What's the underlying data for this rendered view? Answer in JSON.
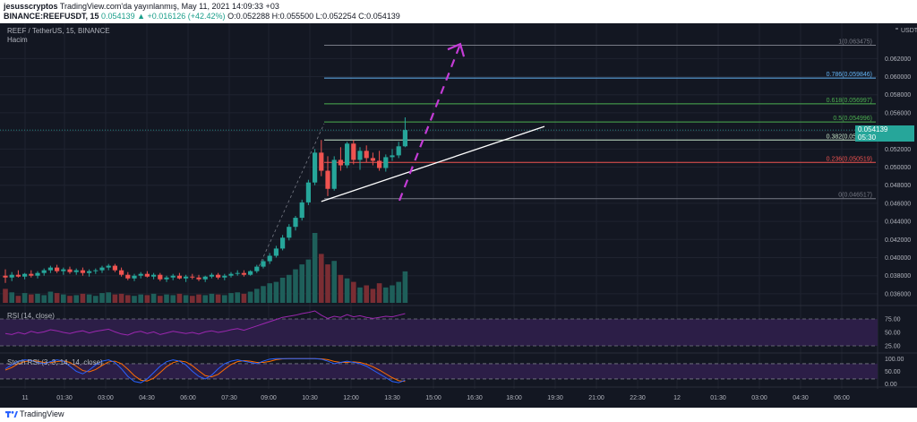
{
  "header": {
    "author": "jesusscryptos",
    "published": "TradingView.com'da yayınlanmış, May 11, 2021 14:09:33 +03",
    "symbol": "BINANCE:REEFUSDT, 15",
    "ohlc": "O:0.052288 H:0.055500 L:0.052254 C:0.054139",
    "change": "0.054139 ▲ +0.016126 (+42.42%)"
  },
  "legend": {
    "title": "REEF / TetherUS, 15, BINANCE",
    "volume_label": "Hacim",
    "rsi_label": "RSI (14, close)",
    "stoch_label": "Stoch RSI (3, 3, 14, 14, close)"
  },
  "price_tag": {
    "value": "0.054139",
    "countdown": "05:30"
  },
  "footer": {
    "brand": "TradingView"
  },
  "colors": {
    "background": "#131722",
    "up": "#26a69a",
    "down": "#ef5350",
    "rsi_line": "#9c27b0",
    "rsi_fill": "#2c1e47",
    "stoch_k": "#2962ff",
    "stoch_d": "#ff6d00",
    "projection": "#c43cd6",
    "trendline": "#ffffff"
  },
  "chart_data": {
    "type": "candlestick",
    "x_tick_labels": [
      "11",
      "01:30",
      "03:00",
      "04:30",
      "06:00",
      "07:30",
      "09:00",
      "10:30",
      "12:00",
      "13:30",
      "15:00",
      "16:30",
      "18:00",
      "19:30",
      "21:00",
      "22:30",
      "12",
      "01:30",
      "03:00",
      "04:30",
      "06:00"
    ],
    "y_axis_unit": "USDT",
    "y_tick_labels": [
      "0.062000",
      "0.060000",
      "0.058000",
      "0.056000",
      "0.054000",
      "0.052000",
      "0.050000",
      "0.048000",
      "0.046000",
      "0.044000",
      "0.042000",
      "0.040000",
      "0.038000",
      "0.036000"
    ],
    "ylim": [
      0.035,
      0.0655
    ],
    "candles_ohlc": [
      [
        0.038,
        0.0387,
        0.0372,
        0.0378
      ],
      [
        0.0378,
        0.0384,
        0.0374,
        0.0381
      ],
      [
        0.0381,
        0.0386,
        0.0378,
        0.0379
      ],
      [
        0.0379,
        0.0383,
        0.0376,
        0.0382
      ],
      [
        0.0382,
        0.0386,
        0.0378,
        0.038
      ],
      [
        0.038,
        0.0385,
        0.0377,
        0.0383
      ],
      [
        0.0383,
        0.0388,
        0.038,
        0.0386
      ],
      [
        0.0386,
        0.0391,
        0.0383,
        0.0389
      ],
      [
        0.0389,
        0.0392,
        0.0383,
        0.0385
      ],
      [
        0.0385,
        0.0389,
        0.0381,
        0.0387
      ],
      [
        0.0387,
        0.039,
        0.0382,
        0.0384
      ],
      [
        0.0384,
        0.0388,
        0.0381,
        0.0386
      ],
      [
        0.0386,
        0.0389,
        0.038,
        0.0383
      ],
      [
        0.0383,
        0.0387,
        0.0379,
        0.0385
      ],
      [
        0.0385,
        0.0388,
        0.0382,
        0.0386
      ],
      [
        0.0386,
        0.0391,
        0.0383,
        0.0389
      ],
      [
        0.0389,
        0.0393,
        0.0386,
        0.0391
      ],
      [
        0.0391,
        0.0393,
        0.0384,
        0.0386
      ],
      [
        0.0386,
        0.0389,
        0.0379,
        0.0381
      ],
      [
        0.0381,
        0.0384,
        0.0375,
        0.0377
      ],
      [
        0.0377,
        0.0382,
        0.0374,
        0.038
      ],
      [
        0.038,
        0.0384,
        0.0377,
        0.0382
      ],
      [
        0.0382,
        0.0385,
        0.0378,
        0.0379
      ],
      [
        0.0379,
        0.0383,
        0.0376,
        0.0381
      ],
      [
        0.0381,
        0.0383,
        0.0374,
        0.0376
      ],
      [
        0.0376,
        0.038,
        0.0373,
        0.0378
      ],
      [
        0.0378,
        0.0382,
        0.0375,
        0.038
      ],
      [
        0.038,
        0.0383,
        0.0376,
        0.0377
      ],
      [
        0.0377,
        0.0381,
        0.0373,
        0.0379
      ],
      [
        0.0379,
        0.0382,
        0.0376,
        0.0378
      ],
      [
        0.0378,
        0.0381,
        0.0374,
        0.0376
      ],
      [
        0.0376,
        0.038,
        0.0373,
        0.0379
      ],
      [
        0.0379,
        0.0383,
        0.0377,
        0.0381
      ],
      [
        0.0381,
        0.0383,
        0.0376,
        0.0378
      ],
      [
        0.0378,
        0.0382,
        0.0375,
        0.038
      ],
      [
        0.038,
        0.0384,
        0.0378,
        0.0382
      ],
      [
        0.0382,
        0.0386,
        0.038,
        0.0383
      ],
      [
        0.0383,
        0.0386,
        0.0379,
        0.0381
      ],
      [
        0.0381,
        0.0386,
        0.038,
        0.0385
      ],
      [
        0.0385,
        0.0392,
        0.0383,
        0.039
      ],
      [
        0.039,
        0.0398,
        0.0388,
        0.0396
      ],
      [
        0.0396,
        0.0405,
        0.0393,
        0.0402
      ],
      [
        0.0402,
        0.0413,
        0.04,
        0.041
      ],
      [
        0.041,
        0.0425,
        0.0408,
        0.0422
      ],
      [
        0.0422,
        0.0437,
        0.0419,
        0.0434
      ],
      [
        0.0434,
        0.0446,
        0.043,
        0.0444
      ],
      [
        0.0444,
        0.0464,
        0.0441,
        0.0461
      ],
      [
        0.0461,
        0.0486,
        0.0458,
        0.0483
      ],
      [
        0.0483,
        0.052,
        0.048,
        0.0516
      ],
      [
        0.0516,
        0.053,
        0.049,
        0.0496
      ],
      [
        0.0496,
        0.0512,
        0.0468,
        0.0476
      ],
      [
        0.0476,
        0.0512,
        0.0474,
        0.0508
      ],
      [
        0.0508,
        0.0522,
        0.0496,
        0.0502
      ],
      [
        0.0502,
        0.0528,
        0.0499,
        0.0526
      ],
      [
        0.0526,
        0.053,
        0.0503,
        0.0508
      ],
      [
        0.0508,
        0.0522,
        0.0497,
        0.0518
      ],
      [
        0.0518,
        0.0524,
        0.0505,
        0.051
      ],
      [
        0.051,
        0.0516,
        0.0502,
        0.0507
      ],
      [
        0.0507,
        0.0518,
        0.0496,
        0.0499
      ],
      [
        0.0499,
        0.0514,
        0.0495,
        0.0511
      ],
      [
        0.0511,
        0.052,
        0.0507,
        0.0513
      ],
      [
        0.0513,
        0.0528,
        0.051,
        0.0523
      ],
      [
        0.0523,
        0.0555,
        0.0522,
        0.0541
      ]
    ],
    "volume_relative": [
      0.2,
      0.15,
      0.1,
      0.14,
      0.12,
      0.13,
      0.11,
      0.16,
      0.14,
      0.12,
      0.1,
      0.11,
      0.13,
      0.12,
      0.1,
      0.14,
      0.15,
      0.12,
      0.13,
      0.11,
      0.1,
      0.12,
      0.11,
      0.13,
      0.1,
      0.12,
      0.11,
      0.13,
      0.11,
      0.1,
      0.12,
      0.11,
      0.13,
      0.12,
      0.11,
      0.14,
      0.15,
      0.13,
      0.16,
      0.2,
      0.24,
      0.28,
      0.3,
      0.36,
      0.4,
      0.48,
      0.55,
      0.62,
      1.0,
      0.7,
      0.55,
      0.6,
      0.4,
      0.35,
      0.3,
      0.22,
      0.25,
      0.2,
      0.28,
      0.22,
      0.25,
      0.3,
      0.45
    ],
    "fibonacci": [
      {
        "label": "1(0.063475)",
        "value": 0.063475,
        "color": "#787b86"
      },
      {
        "label": "0.786(0.059846)",
        "value": 0.059846,
        "color": "#64b5f6"
      },
      {
        "label": "0.618(0.056997)",
        "value": 0.056997,
        "color": "#4caf50"
      },
      {
        "label": "0.5(0.054996)",
        "value": 0.054996,
        "color": "#4caf50"
      },
      {
        "label": "0.382(0.052995)",
        "value": 0.052995,
        "color": "#c8e6c9"
      },
      {
        "label": "0.236(0.050519)",
        "value": 0.050519,
        "color": "#ef5350"
      },
      {
        "label": "0(0.046517)",
        "value": 0.046517,
        "color": "#787b86"
      }
    ],
    "rsi": {
      "levels_labels": [
        "75.00",
        "50.00",
        "25.00"
      ],
      "levels": [
        75,
        50,
        25
      ],
      "ylim": [
        15,
        95
      ],
      "values": [
        48,
        46,
        50,
        47,
        52,
        49,
        51,
        55,
        53,
        50,
        48,
        51,
        53,
        49,
        52,
        54,
        56,
        51,
        47,
        45,
        50,
        52,
        48,
        51,
        46,
        49,
        52,
        50,
        48,
        50,
        47,
        51,
        53,
        50,
        52,
        55,
        57,
        54,
        58,
        62,
        66,
        70,
        74,
        78,
        80,
        82,
        85,
        87,
        90,
        82,
        76,
        80,
        78,
        83,
        79,
        81,
        78,
        76,
        78,
        80,
        79,
        82,
        85
      ]
    },
    "stoch_rsi": {
      "levels_labels": [
        "100.00",
        "50.00",
        "0.00"
      ],
      "levels": [
        100,
        50,
        0
      ],
      "ylim": [
        -5,
        115
      ],
      "k": [
        60,
        75,
        90,
        95,
        92,
        85,
        80,
        88,
        95,
        90,
        70,
        50,
        40,
        55,
        75,
        90,
        95,
        85,
        60,
        30,
        10,
        5,
        20,
        45,
        70,
        88,
        95,
        90,
        75,
        50,
        30,
        20,
        35,
        60,
        80,
        90,
        95,
        90,
        85,
        80,
        90,
        98,
        100,
        100,
        100,
        100,
        100,
        100,
        100,
        98,
        90,
        80,
        85,
        90,
        85,
        80,
        70,
        55,
        40,
        25,
        10,
        5,
        15
      ],
      "d": [
        55,
        65,
        80,
        88,
        92,
        90,
        85,
        84,
        88,
        91,
        85,
        70,
        53,
        48,
        57,
        73,
        87,
        90,
        80,
        58,
        33,
        15,
        12,
        23,
        45,
        68,
        84,
        91,
        87,
        72,
        52,
        33,
        28,
        38,
        58,
        77,
        88,
        92,
        90,
        85,
        85,
        89,
        96,
        99,
        100,
        100,
        100,
        100,
        100,
        99,
        96,
        89,
        85,
        85,
        87,
        85,
        78,
        68,
        55,
        40,
        25,
        13,
        10
      ]
    }
  }
}
